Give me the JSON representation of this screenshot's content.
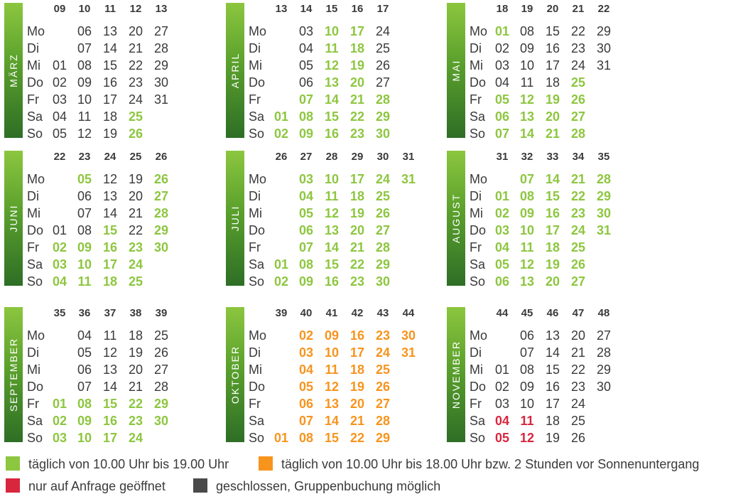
{
  "dayNames": [
    "Mo",
    "Di",
    "Mi",
    "Do",
    "Fr",
    "Sa",
    "So"
  ],
  "months": [
    {
      "name": "MÄRZ",
      "weeks": [
        "09",
        "10",
        "11",
        "12",
        "13"
      ],
      "rows": [
        [
          "",
          "06",
          "13",
          "20",
          "27"
        ],
        [
          "",
          "07",
          "14",
          "21",
          "28"
        ],
        [
          "01",
          "08",
          "15",
          "22",
          "29"
        ],
        [
          "02",
          "09",
          "16",
          "23",
          "30"
        ],
        [
          "03",
          "10",
          "17",
          "24",
          "31"
        ],
        [
          "04",
          "11",
          "18",
          "25",
          ""
        ],
        [
          "05",
          "12",
          "19",
          "26",
          ""
        ]
      ],
      "status": [
        [
          "",
          "n",
          "n",
          "n",
          "n"
        ],
        [
          "",
          "n",
          "n",
          "n",
          "n"
        ],
        [
          "n",
          "n",
          "n",
          "n",
          "n"
        ],
        [
          "n",
          "n",
          "n",
          "n",
          "n"
        ],
        [
          "n",
          "n",
          "n",
          "n",
          "n"
        ],
        [
          "n",
          "n",
          "n",
          "g",
          ""
        ],
        [
          "n",
          "n",
          "n",
          "g",
          ""
        ]
      ]
    },
    {
      "name": "APRIL",
      "weeks": [
        "13",
        "14",
        "15",
        "16",
        "17"
      ],
      "rows": [
        [
          "",
          "03",
          "10",
          "17",
          "24"
        ],
        [
          "",
          "04",
          "11",
          "18",
          "25"
        ],
        [
          "",
          "05",
          "12",
          "19",
          "26"
        ],
        [
          "",
          "06",
          "13",
          "20",
          "27"
        ],
        [
          "",
          "07",
          "14",
          "21",
          "28"
        ],
        [
          "01",
          "08",
          "15",
          "22",
          "29"
        ],
        [
          "02",
          "09",
          "16",
          "23",
          "30"
        ]
      ],
      "status": [
        [
          "",
          "n",
          "g",
          "g",
          "n"
        ],
        [
          "",
          "n",
          "g",
          "g",
          "n"
        ],
        [
          "",
          "n",
          "g",
          "g",
          "n"
        ],
        [
          "",
          "n",
          "g",
          "g",
          "n"
        ],
        [
          "",
          "g",
          "g",
          "g",
          "g"
        ],
        [
          "g",
          "g",
          "g",
          "g",
          "g"
        ],
        [
          "g",
          "g",
          "g",
          "g",
          "g"
        ]
      ]
    },
    {
      "name": "MAI",
      "weeks": [
        "18",
        "19",
        "20",
        "21",
        "22"
      ],
      "rows": [
        [
          "01",
          "08",
          "15",
          "22",
          "29"
        ],
        [
          "02",
          "09",
          "16",
          "23",
          "30"
        ],
        [
          "03",
          "10",
          "17",
          "24",
          "31"
        ],
        [
          "04",
          "11",
          "18",
          "25",
          ""
        ],
        [
          "05",
          "12",
          "19",
          "26",
          ""
        ],
        [
          "06",
          "13",
          "20",
          "27",
          ""
        ],
        [
          "07",
          "14",
          "21",
          "28",
          ""
        ]
      ],
      "status": [
        [
          "g",
          "n",
          "n",
          "n",
          "n"
        ],
        [
          "n",
          "n",
          "n",
          "n",
          "n"
        ],
        [
          "n",
          "n",
          "n",
          "n",
          "n"
        ],
        [
          "n",
          "n",
          "n",
          "g",
          ""
        ],
        [
          "g",
          "g",
          "g",
          "g",
          ""
        ],
        [
          "g",
          "g",
          "g",
          "g",
          ""
        ],
        [
          "g",
          "g",
          "g",
          "g",
          ""
        ]
      ]
    },
    {
      "name": "JUNI",
      "weeks": [
        "22",
        "23",
        "24",
        "25",
        "26"
      ],
      "rows": [
        [
          "",
          "05",
          "12",
          "19",
          "26"
        ],
        [
          "",
          "06",
          "13",
          "20",
          "27"
        ],
        [
          "",
          "07",
          "14",
          "21",
          "28"
        ],
        [
          "01",
          "08",
          "15",
          "22",
          "29"
        ],
        [
          "02",
          "09",
          "16",
          "23",
          "30"
        ],
        [
          "03",
          "10",
          "17",
          "24",
          ""
        ],
        [
          "04",
          "11",
          "18",
          "25",
          ""
        ]
      ],
      "status": [
        [
          "",
          "g",
          "n",
          "n",
          "g"
        ],
        [
          "",
          "n",
          "n",
          "n",
          "g"
        ],
        [
          "",
          "n",
          "n",
          "n",
          "g"
        ],
        [
          "n",
          "n",
          "g",
          "n",
          "g"
        ],
        [
          "g",
          "g",
          "g",
          "g",
          "g"
        ],
        [
          "g",
          "g",
          "g",
          "g",
          ""
        ],
        [
          "g",
          "g",
          "g",
          "g",
          ""
        ]
      ]
    },
    {
      "name": "JULI",
      "weeks": [
        "26",
        "27",
        "28",
        "29",
        "30",
        "31"
      ],
      "rows": [
        [
          "",
          "03",
          "10",
          "17",
          "24",
          "31"
        ],
        [
          "",
          "04",
          "11",
          "18",
          "25",
          ""
        ],
        [
          "",
          "05",
          "12",
          "19",
          "26",
          ""
        ],
        [
          "",
          "06",
          "13",
          "20",
          "27",
          ""
        ],
        [
          "",
          "07",
          "14",
          "21",
          "28",
          ""
        ],
        [
          "01",
          "08",
          "15",
          "22",
          "29",
          ""
        ],
        [
          "02",
          "09",
          "16",
          "23",
          "30",
          ""
        ]
      ],
      "status": [
        [
          "",
          "g",
          "g",
          "g",
          "g",
          "g"
        ],
        [
          "",
          "g",
          "g",
          "g",
          "g",
          ""
        ],
        [
          "",
          "g",
          "g",
          "g",
          "g",
          ""
        ],
        [
          "",
          "g",
          "g",
          "g",
          "g",
          ""
        ],
        [
          "",
          "g",
          "g",
          "g",
          "g",
          ""
        ],
        [
          "g",
          "g",
          "g",
          "g",
          "g",
          ""
        ],
        [
          "g",
          "g",
          "g",
          "g",
          "g",
          ""
        ]
      ]
    },
    {
      "name": "AUGUST",
      "weeks": [
        "31",
        "32",
        "33",
        "34",
        "35"
      ],
      "rows": [
        [
          "",
          "07",
          "14",
          "21",
          "28"
        ],
        [
          "01",
          "08",
          "15",
          "22",
          "29"
        ],
        [
          "02",
          "09",
          "16",
          "23",
          "30"
        ],
        [
          "03",
          "10",
          "17",
          "24",
          "31"
        ],
        [
          "04",
          "11",
          "18",
          "25",
          ""
        ],
        [
          "05",
          "12",
          "19",
          "26",
          ""
        ],
        [
          "06",
          "13",
          "20",
          "27",
          ""
        ]
      ],
      "status": [
        [
          "",
          "g",
          "g",
          "g",
          "g"
        ],
        [
          "g",
          "g",
          "g",
          "g",
          "g"
        ],
        [
          "g",
          "g",
          "g",
          "g",
          "g"
        ],
        [
          "g",
          "g",
          "g",
          "g",
          "g"
        ],
        [
          "g",
          "g",
          "g",
          "g",
          ""
        ],
        [
          "g",
          "g",
          "g",
          "g",
          ""
        ],
        [
          "g",
          "g",
          "g",
          "g",
          ""
        ]
      ]
    },
    {
      "name": "SEPTEMBER",
      "weeks": [
        "35",
        "36",
        "37",
        "38",
        "39"
      ],
      "rows": [
        [
          "",
          "04",
          "11",
          "18",
          "25"
        ],
        [
          "",
          "05",
          "12",
          "19",
          "26"
        ],
        [
          "",
          "06",
          "13",
          "20",
          "27"
        ],
        [
          "",
          "07",
          "14",
          "21",
          "28"
        ],
        [
          "01",
          "08",
          "15",
          "22",
          "29"
        ],
        [
          "02",
          "09",
          "16",
          "23",
          "30"
        ],
        [
          "03",
          "10",
          "17",
          "24",
          ""
        ]
      ],
      "status": [
        [
          "",
          "n",
          "n",
          "n",
          "n"
        ],
        [
          "",
          "n",
          "n",
          "n",
          "n"
        ],
        [
          "",
          "n",
          "n",
          "n",
          "n"
        ],
        [
          "",
          "n",
          "n",
          "n",
          "n"
        ],
        [
          "g",
          "g",
          "g",
          "g",
          "g"
        ],
        [
          "g",
          "g",
          "g",
          "g",
          "g"
        ],
        [
          "g",
          "g",
          "g",
          "g",
          ""
        ]
      ]
    },
    {
      "name": "OKTOBER",
      "weeks": [
        "39",
        "40",
        "41",
        "42",
        "43",
        "44"
      ],
      "rows": [
        [
          "",
          "02",
          "09",
          "16",
          "23",
          "30"
        ],
        [
          "",
          "03",
          "10",
          "17",
          "24",
          "31"
        ],
        [
          "",
          "04",
          "11",
          "18",
          "25",
          ""
        ],
        [
          "",
          "05",
          "12",
          "19",
          "26",
          ""
        ],
        [
          "",
          "06",
          "13",
          "20",
          "27",
          ""
        ],
        [
          "",
          "07",
          "14",
          "21",
          "28",
          ""
        ],
        [
          "01",
          "08",
          "15",
          "22",
          "29",
          ""
        ]
      ],
      "status": [
        [
          "",
          "o",
          "o",
          "o",
          "o",
          "o"
        ],
        [
          "",
          "o",
          "o",
          "o",
          "o",
          "o"
        ],
        [
          "",
          "o",
          "o",
          "o",
          "o",
          ""
        ],
        [
          "",
          "o",
          "o",
          "o",
          "o",
          ""
        ],
        [
          "",
          "o",
          "o",
          "o",
          "o",
          ""
        ],
        [
          "",
          "o",
          "o",
          "o",
          "o",
          ""
        ],
        [
          "o",
          "o",
          "o",
          "o",
          "o",
          ""
        ]
      ]
    },
    {
      "name": "NOVEMBER",
      "weeks": [
        "44",
        "45",
        "46",
        "47",
        "48"
      ],
      "rows": [
        [
          "",
          "06",
          "13",
          "20",
          "27"
        ],
        [
          "",
          "07",
          "14",
          "21",
          "28"
        ],
        [
          "01",
          "08",
          "15",
          "22",
          "29"
        ],
        [
          "02",
          "09",
          "16",
          "23",
          "30"
        ],
        [
          "03",
          "10",
          "17",
          "24",
          ""
        ],
        [
          "04",
          "11",
          "18",
          "25",
          ""
        ],
        [
          "05",
          "12",
          "19",
          "26",
          ""
        ]
      ],
      "status": [
        [
          "",
          "n",
          "n",
          "n",
          "n"
        ],
        [
          "",
          "n",
          "n",
          "n",
          "n"
        ],
        [
          "n",
          "n",
          "n",
          "n",
          "n"
        ],
        [
          "n",
          "n",
          "n",
          "n",
          "n"
        ],
        [
          "n",
          "n",
          "n",
          "n",
          ""
        ],
        [
          "r",
          "r",
          "n",
          "n",
          ""
        ],
        [
          "r",
          "r",
          "n",
          "n",
          ""
        ]
      ]
    }
  ],
  "legend": [
    {
      "color": "#8dc63f",
      "text": "täglich von 10.00 Uhr bis 19.00 Uhr"
    },
    {
      "color": "#f7941d",
      "text": "täglich von 10.00 Uhr bis 18.00 Uhr bzw. 2 Stunden vor Sonnenuntergang"
    },
    {
      "color": "#d7263d",
      "text": "nur auf Anfrage geöffnet"
    },
    {
      "color": "#4a4a4a",
      "text": "geschlossen, Gruppenbuchung möglich"
    }
  ]
}
